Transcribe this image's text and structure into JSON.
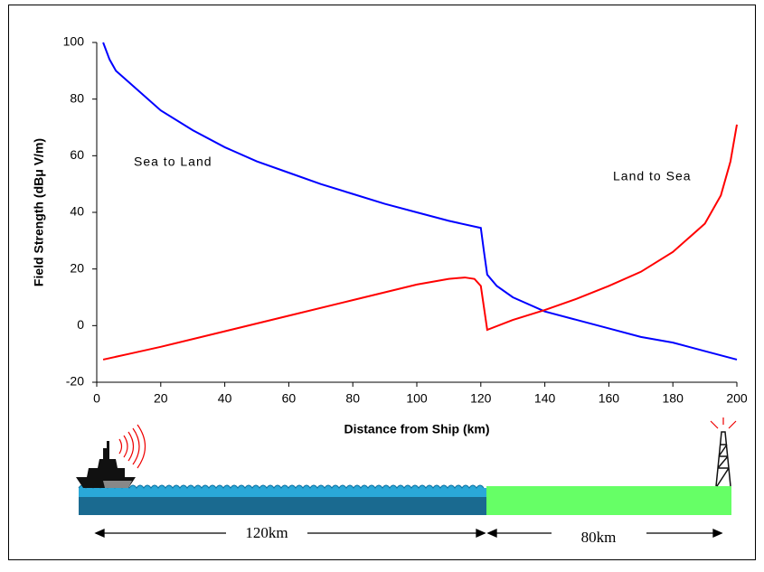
{
  "chart_data": {
    "type": "line",
    "xlabel": "Distance from Ship (km)",
    "ylabel": "Field Strength (dBμ V/m)",
    "xlim": [
      0,
      200
    ],
    "xticks": [
      0,
      20,
      40,
      60,
      80,
      100,
      120,
      140,
      160,
      180,
      200
    ],
    "ylim": [
      -20,
      100
    ],
    "yticks": [
      -20,
      0,
      20,
      40,
      60,
      80,
      100
    ],
    "annotations": [
      "Sea to Land",
      "Land to Sea"
    ],
    "series": [
      {
        "name": "Sea to Land",
        "color": "#0000ff",
        "x": [
          2,
          4,
          6,
          10,
          20,
          30,
          40,
          50,
          60,
          70,
          80,
          90,
          100,
          110,
          120,
          121,
          122,
          125,
          130,
          140,
          150,
          160,
          170,
          180,
          190,
          200
        ],
        "values": [
          100,
          94,
          90,
          86,
          76,
          69,
          63,
          58,
          54,
          50,
          46.5,
          43,
          40,
          37,
          34.5,
          26,
          18,
          14,
          10,
          5,
          2,
          -1,
          -4,
          -6,
          -9,
          -12
        ]
      },
      {
        "name": "Land to Sea",
        "color": "#ff0000",
        "x": [
          2,
          10,
          20,
          40,
          60,
          80,
          100,
          110,
          115,
          118,
          120,
          122,
          130,
          140,
          150,
          160,
          170,
          180,
          190,
          195,
          198,
          200
        ],
        "values": [
          -12,
          -10,
          -7.5,
          -2,
          3.5,
          9,
          14.5,
          16.5,
          17,
          16.5,
          14,
          -1.5,
          2,
          5.5,
          9.5,
          14,
          19,
          26,
          36,
          46,
          58,
          71
        ]
      }
    ]
  },
  "illustration": {
    "sea_distance": "120km",
    "land_distance": "80km"
  }
}
